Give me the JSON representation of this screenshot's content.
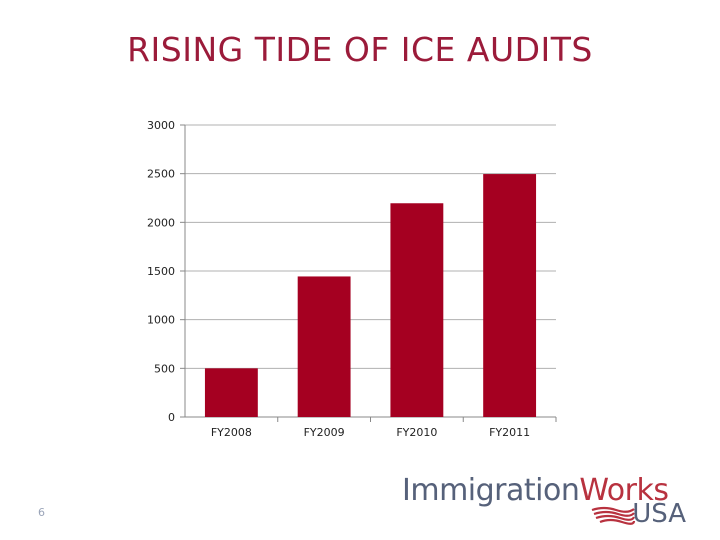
{
  "slide": {
    "title": "RISING TIDE OF ICE AUDITS",
    "page_number": "6"
  },
  "logo": {
    "word1": "Immigration",
    "word2": "Works",
    "word3": "USA"
  },
  "colors": {
    "title": "#9b1b3a",
    "bar": "#a50021",
    "grid": "#b0b0b0",
    "logo_gray": "#56617a",
    "logo_red": "#b8323f"
  },
  "chart_data": {
    "type": "bar",
    "title": "",
    "xlabel": "",
    "ylabel": "",
    "categories": [
      "FY2008",
      "FY2009",
      "FY2010",
      "FY2011"
    ],
    "values": [
      500,
      1444,
      2196,
      2496
    ],
    "ylim": [
      0,
      3000
    ],
    "yticks": [
      0,
      500,
      1000,
      1500,
      2000,
      2500,
      3000
    ],
    "grid": true,
    "legend": "none"
  }
}
